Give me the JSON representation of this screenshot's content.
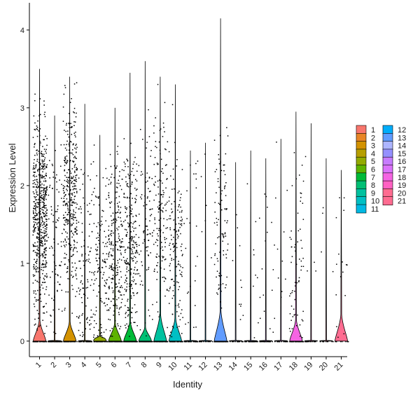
{
  "chart_data": {
    "type": "violin",
    "xlabel": "Identity",
    "ylabel": "Expression Level",
    "ylim": [
      -0.2,
      4.35
    ],
    "yticks": [
      0,
      1,
      2,
      3,
      4
    ],
    "categories": [
      "1",
      "2",
      "3",
      "4",
      "5",
      "6",
      "7",
      "8",
      "9",
      "10",
      "11",
      "12",
      "13",
      "14",
      "15",
      "16",
      "17",
      "18",
      "19",
      "20",
      "21"
    ],
    "colors": [
      "#F8766D",
      "#E88526",
      "#D39200",
      "#B79F00",
      "#93AA00",
      "#5EB300",
      "#00BA38",
      "#00BF74",
      "#00C19F",
      "#00BFC4",
      "#00B9E3",
      "#00ADFA",
      "#619CFF",
      "#ADB5FF",
      "#9590FF",
      "#C77CFF",
      "#DB72FB",
      "#F564E3",
      "#FF61C3",
      "#FF6C91",
      "#FF6C91"
    ],
    "series": [
      {
        "name": "1",
        "max": 3.5,
        "peak_height": 0.27,
        "detect_frac": 0.95,
        "mean_pos": 1.6,
        "points": 620
      },
      {
        "name": "2",
        "max": 2.9,
        "peak_height": 0.0,
        "detect_frac": 0.6,
        "mean_pos": 1.4,
        "points": 150
      },
      {
        "name": "3",
        "max": 3.4,
        "peak_height": 0.25,
        "detect_frac": 0.9,
        "mean_pos": 1.9,
        "points": 400
      },
      {
        "name": "4",
        "max": 3.05,
        "peak_height": 0.0,
        "detect_frac": 0.6,
        "mean_pos": 1.1,
        "points": 150
      },
      {
        "name": "5",
        "max": 2.65,
        "peak_height": 0.07,
        "detect_frac": 0.7,
        "mean_pos": 0.9,
        "points": 180
      },
      {
        "name": "6",
        "max": 3.0,
        "peak_height": 0.23,
        "detect_frac": 0.8,
        "mean_pos": 1.2,
        "points": 300
      },
      {
        "name": "7",
        "max": 3.45,
        "peak_height": 0.25,
        "detect_frac": 0.8,
        "mean_pos": 1.3,
        "points": 320
      },
      {
        "name": "8",
        "max": 3.6,
        "peak_height": 0.18,
        "detect_frac": 0.6,
        "mean_pos": 1.6,
        "points": 160
      },
      {
        "name": "9",
        "max": 3.4,
        "peak_height": 0.35,
        "detect_frac": 0.7,
        "mean_pos": 1.6,
        "points": 200
      },
      {
        "name": "10",
        "max": 3.3,
        "peak_height": 0.3,
        "detect_frac": 0.7,
        "mean_pos": 1.2,
        "points": 200
      },
      {
        "name": "11",
        "max": 2.45,
        "peak_height": 0.0,
        "detect_frac": 0.4,
        "mean_pos": 1.2,
        "points": 60
      },
      {
        "name": "12",
        "max": 2.55,
        "peak_height": 0.0,
        "detect_frac": 0.3,
        "mean_pos": 1.5,
        "points": 20
      },
      {
        "name": "13",
        "max": 4.15,
        "peak_height": 0.4,
        "detect_frac": 0.55,
        "mean_pos": 1.6,
        "points": 150
      },
      {
        "name": "14",
        "max": 2.3,
        "peak_height": 0.0,
        "detect_frac": 0.3,
        "mean_pos": 1.0,
        "points": 30
      },
      {
        "name": "15",
        "max": 2.45,
        "peak_height": 0.0,
        "detect_frac": 0.3,
        "mean_pos": 1.0,
        "points": 40
      },
      {
        "name": "16",
        "max": 2.35,
        "peak_height": 0.0,
        "detect_frac": 0.3,
        "mean_pos": 1.0,
        "points": 40
      },
      {
        "name": "17",
        "max": 2.6,
        "peak_height": 0.0,
        "detect_frac": 0.3,
        "mean_pos": 1.0,
        "points": 30
      },
      {
        "name": "18",
        "max": 2.95,
        "peak_height": 0.28,
        "detect_frac": 0.55,
        "mean_pos": 1.0,
        "points": 110
      },
      {
        "name": "19",
        "max": 2.8,
        "peak_height": 0.0,
        "detect_frac": 0.3,
        "mean_pos": 1.2,
        "points": 20
      },
      {
        "name": "20",
        "max": 2.35,
        "peak_height": 0.0,
        "detect_frac": 0.3,
        "mean_pos": 1.2,
        "points": 15
      },
      {
        "name": "21",
        "max": 2.2,
        "peak_height": 0.35,
        "detect_frac": 0.6,
        "mean_pos": 1.1,
        "points": 25
      }
    ],
    "legend": {
      "placement": "right",
      "columns": 2
    },
    "grid": false
  }
}
